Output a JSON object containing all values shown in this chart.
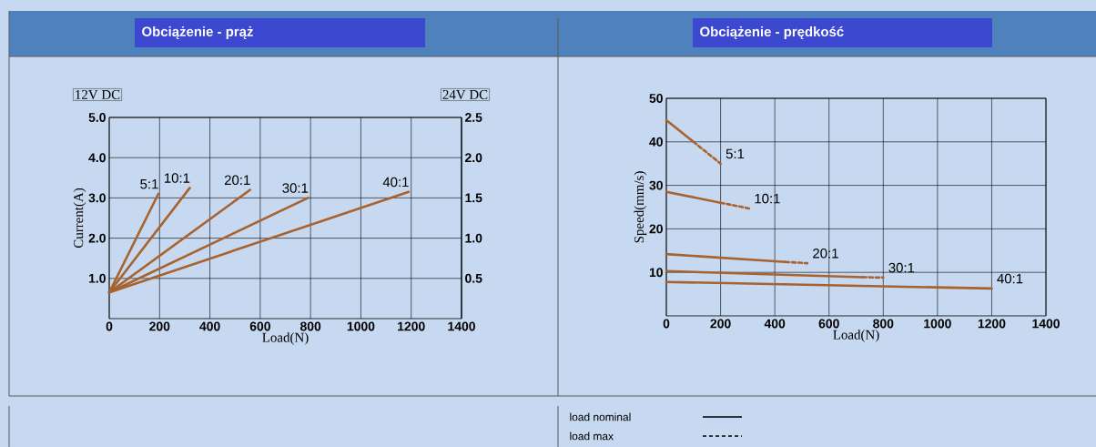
{
  "chart_data": [
    {
      "type": "line",
      "title": "Obciążenie - prąż",
      "xlabel": "Load(N)",
      "ylabel": "Current(A)",
      "annotations": [
        "12V DC",
        "24V DC"
      ],
      "xlim": [
        0,
        1400
      ],
      "xticks": [
        0,
        200,
        400,
        600,
        800,
        1000,
        1200,
        1400
      ],
      "ylim": [
        0,
        5
      ],
      "yticks": [
        {
          "value": 1,
          "label": "1.0"
        },
        {
          "value": 2,
          "label": "2.0"
        },
        {
          "value": 3,
          "label": "3.0"
        },
        {
          "value": 4,
          "label": "4.0"
        },
        {
          "value": 5,
          "label": "5.0"
        }
      ],
      "y2lim": [
        0,
        2.5
      ],
      "y2ticks": [
        0.5,
        {
          "value": 1,
          "label": "1.0"
        },
        1.5,
        {
          "value": 2,
          "label": "2.0"
        },
        2.5
      ],
      "grid": true,
      "marker": "none",
      "series": [
        {
          "name": "5:1",
          "color": "#a8622e",
          "x": [
            0,
            195
          ],
          "values": [
            0.65,
            3.1
          ]
        },
        {
          "name": "10:1",
          "color": "#a8622e",
          "x": [
            0,
            320
          ],
          "values": [
            0.65,
            3.25
          ]
        },
        {
          "name": "20:1",
          "color": "#a8622e",
          "x": [
            0,
            560
          ],
          "values": [
            0.65,
            3.2
          ]
        },
        {
          "name": "30:1",
          "color": "#a8622e",
          "x": [
            0,
            790
          ],
          "values": [
            0.65,
            3.0
          ]
        },
        {
          "name": "40:1",
          "color": "#a8622e",
          "x": [
            0,
            1190
          ],
          "values": [
            0.65,
            3.15
          ]
        }
      ]
    },
    {
      "type": "line",
      "title": "Obciążenie - prędkość",
      "xlabel": "Load(N)",
      "ylabel": "Speed(mm/s)",
      "annotations": [
        "load nominal",
        "load max"
      ],
      "xlim": [
        0,
        1400
      ],
      "xticks": [
        0,
        200,
        400,
        600,
        800,
        1000,
        1200,
        1400
      ],
      "ylim": [
        0,
        50
      ],
      "yticks": [
        10,
        20,
        30,
        40,
        50
      ],
      "grid": true,
      "marker": "none",
      "series": [
        {
          "color": "#a8622e",
          "line_style": "solid",
          "x": [
            0,
            100
          ],
          "values": [
            45,
            40
          ]
        },
        {
          "name": "5:1",
          "color": "#a8622e",
          "line_style": "dashed",
          "x": [
            100,
            200
          ],
          "values": [
            40,
            35
          ]
        },
        {
          "color": "#a8622e",
          "line_style": "solid",
          "x": [
            0,
            200
          ],
          "values": [
            28.5,
            26
          ]
        },
        {
          "name": "10:1",
          "color": "#a8622e",
          "line_style": "dashed",
          "x": [
            200,
            305
          ],
          "values": [
            26,
            24.7
          ]
        },
        {
          "color": "#a8622e",
          "line_style": "solid",
          "x": [
            0,
            440
          ],
          "values": [
            14.2,
            12.4
          ]
        },
        {
          "name": "20:1",
          "color": "#a8622e",
          "line_style": "dashed",
          "x": [
            440,
            520
          ],
          "values": [
            12.4,
            12.1
          ]
        },
        {
          "color": "#a8622e",
          "line_style": "solid",
          "x": [
            0,
            725
          ],
          "values": [
            10.3,
            8.9
          ]
        },
        {
          "name": "30:1",
          "color": "#a8622e",
          "line_style": "dashed",
          "x": [
            725,
            800
          ],
          "values": [
            8.9,
            8.8
          ]
        },
        {
          "name": "40:1",
          "color": "#a8622e",
          "line_style": "solid",
          "x": [
            0,
            1200
          ],
          "values": [
            7.8,
            6.3
          ]
        }
      ]
    }
  ]
}
